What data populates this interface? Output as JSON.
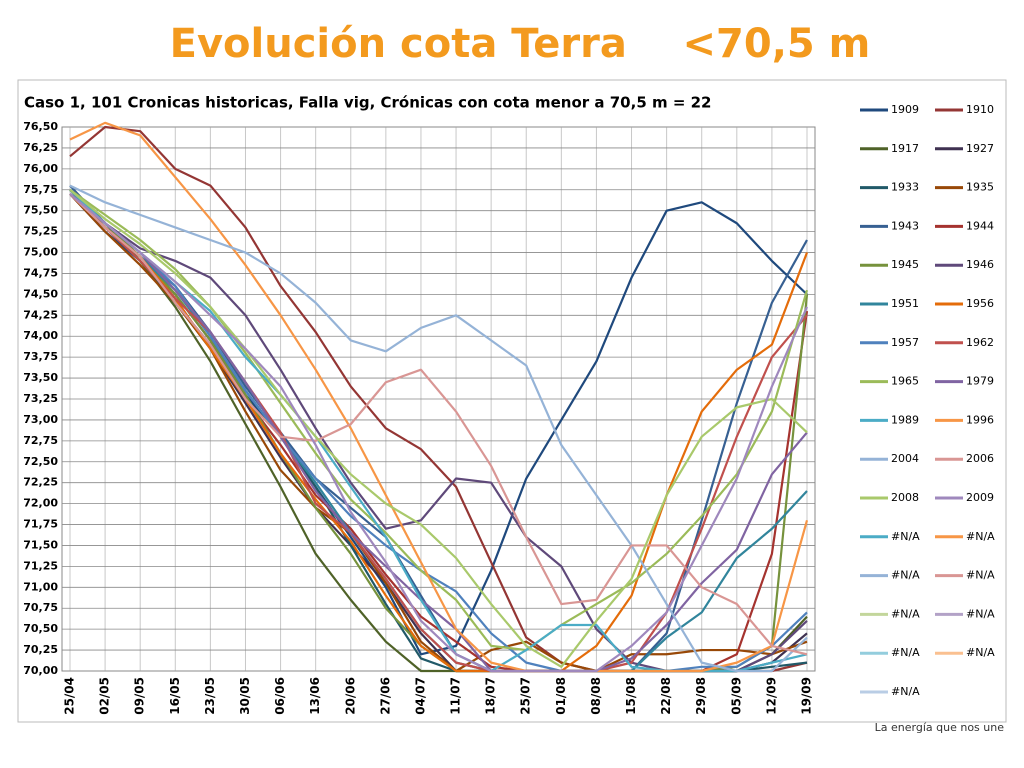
{
  "slide_title": "Evolución cota Terra    <70,5 m",
  "footer": "La energía que nos une",
  "chart_data": {
    "type": "line",
    "title": "Caso  1, 101 Cronicas historicas,  Falla vig,  Crónicas  con cota menor a 70,5 m = 22",
    "categories": [
      "25/04",
      "02/05",
      "09/05",
      "16/05",
      "23/05",
      "30/05",
      "06/06",
      "13/06",
      "20/06",
      "27/06",
      "04/07",
      "11/07",
      "18/07",
      "25/07",
      "01/08",
      "08/08",
      "15/08",
      "22/08",
      "29/08",
      "05/09",
      "12/09",
      "19/09"
    ],
    "ylim": [
      70,
      76.5
    ],
    "yticks": [
      {
        "value": 70,
        "label": "70,00"
      },
      {
        "value": 70.25,
        "label": "70,25"
      },
      {
        "value": 70.5,
        "label": "70,50"
      },
      {
        "value": 70.75,
        "label": "70,75"
      },
      {
        "value": 71,
        "label": "71,00"
      },
      {
        "value": 71.25,
        "label": "71,25"
      },
      {
        "value": 71.5,
        "label": "71,50"
      },
      {
        "value": 71.75,
        "label": "71,75"
      },
      {
        "value": 72,
        "label": "72,00"
      },
      {
        "value": 72.25,
        "label": "72,25"
      },
      {
        "value": 72.5,
        "label": "72,50"
      },
      {
        "value": 72.75,
        "label": "72,75"
      },
      {
        "value": 73,
        "label": "73,00"
      },
      {
        "value": 73.25,
        "label": "73,25"
      },
      {
        "value": 73.5,
        "label": "73,50"
      },
      {
        "value": 73.75,
        "label": "73,75"
      },
      {
        "value": 74,
        "label": "74,00"
      },
      {
        "value": 74.25,
        "label": "74,25"
      },
      {
        "value": 74.5,
        "label": "74,50"
      },
      {
        "value": 74.75,
        "label": "74,75"
      },
      {
        "value": 75,
        "label": "75,00"
      },
      {
        "value": 75.25,
        "label": "75,25"
      },
      {
        "value": 75.5,
        "label": "75,50"
      },
      {
        "value": 75.75,
        "label": "75,75"
      },
      {
        "value": 76,
        "label": "76,00"
      },
      {
        "value": 76.25,
        "label": "76,25"
      },
      {
        "value": 76.5,
        "label": "76,50"
      }
    ],
    "grid": true,
    "legend": "right",
    "series": [
      {
        "name": "1909",
        "color": "#1f497d",
        "values": [
          75.7,
          75.25,
          74.9,
          74.4,
          73.9,
          73.3,
          72.8,
          72.2,
          71.6,
          71.0,
          70.2,
          70.3,
          71.2,
          72.3,
          73.0,
          73.7,
          74.7,
          75.5,
          75.6,
          75.35,
          74.9,
          74.5
        ]
      },
      {
        "name": "1910",
        "color": "#943634",
        "values": [
          76.15,
          76.5,
          76.45,
          76.0,
          75.8,
          75.3,
          74.6,
          74.05,
          73.4,
          72.9,
          72.65,
          72.2,
          71.3,
          70.4,
          70.1,
          70,
          70,
          70,
          70,
          70,
          70,
          70.1
        ]
      },
      {
        "name": "1917",
        "color": "#4f6228",
        "values": [
          75.75,
          75.35,
          74.9,
          74.35,
          73.7,
          72.95,
          72.2,
          71.4,
          70.85,
          70.35,
          70.0,
          70,
          70,
          70,
          70,
          70,
          70,
          70,
          70,
          70,
          70.2,
          70.65
        ]
      },
      {
        "name": "1927",
        "color": "#3f3151",
        "values": [
          75.7,
          75.3,
          74.95,
          74.45,
          73.85,
          73.2,
          72.55,
          71.95,
          71.5,
          71.05,
          70.45,
          70.0,
          70,
          70,
          70,
          70,
          70,
          70,
          70,
          70,
          70.1,
          70.45
        ]
      },
      {
        "name": "1933",
        "color": "#215968",
        "values": [
          75.75,
          75.3,
          74.95,
          74.5,
          73.95,
          73.35,
          72.8,
          72.2,
          71.5,
          70.8,
          70.15,
          70,
          70,
          70,
          70,
          70,
          70,
          70,
          70,
          70,
          70.05,
          70.1
        ]
      },
      {
        "name": "1935",
        "color": "#984807",
        "values": [
          75.7,
          75.25,
          74.85,
          74.4,
          73.85,
          73.1,
          72.4,
          71.95,
          71.65,
          71.05,
          70.35,
          70.0,
          70.25,
          70.35,
          70.1,
          70,
          70.2,
          70.2,
          70.25,
          70.25,
          70.2,
          70.35
        ]
      },
      {
        "name": "1943",
        "color": "#376092",
        "values": [
          75.8,
          75.35,
          74.95,
          74.6,
          74.05,
          73.4,
          72.85,
          72.3,
          71.95,
          71.6,
          70.9,
          70.2,
          70,
          70,
          70,
          70,
          70,
          70.45,
          71.8,
          73.2,
          74.4,
          75.15
        ]
      },
      {
        "name": "1944",
        "color": "#a5332f",
        "values": [
          75.7,
          75.3,
          74.95,
          74.5,
          73.95,
          73.25,
          72.7,
          72.1,
          71.7,
          71.15,
          70.65,
          70.35,
          70.05,
          70,
          70,
          70,
          70,
          70,
          70,
          70.2,
          71.4,
          74.3
        ]
      },
      {
        "name": "1945",
        "color": "#76923c",
        "values": [
          75.7,
          75.35,
          74.95,
          74.5,
          73.95,
          73.3,
          72.6,
          71.95,
          71.4,
          70.75,
          70.3,
          70,
          70,
          70,
          70,
          70,
          70,
          70,
          70,
          70.05,
          70.3,
          74.5
        ]
      },
      {
        "name": "1946",
        "color": "#5f497a",
        "values": [
          75.75,
          75.35,
          75.05,
          74.9,
          74.7,
          74.25,
          73.6,
          72.9,
          72.25,
          71.7,
          71.8,
          72.3,
          72.25,
          71.6,
          71.25,
          70.5,
          70.1,
          70,
          70,
          70,
          70.2,
          70.6
        ]
      },
      {
        "name": "1951",
        "color": "#31859c",
        "values": [
          75.7,
          75.3,
          74.95,
          74.55,
          74.0,
          73.35,
          72.8,
          72.25,
          71.65,
          71.1,
          70.5,
          70.1,
          70,
          70,
          70,
          70,
          70,
          70.4,
          70.7,
          71.35,
          71.7,
          72.15
        ]
      },
      {
        "name": "1956",
        "color": "#e46c0a",
        "values": [
          75.7,
          75.3,
          74.95,
          74.45,
          73.85,
          73.25,
          72.6,
          72.05,
          71.55,
          70.9,
          70.3,
          70,
          70,
          70,
          70,
          70.3,
          70.9,
          72.1,
          73.1,
          73.6,
          73.9,
          75.0
        ]
      },
      {
        "name": "1957",
        "color": "#4f81bd",
        "values": [
          75.75,
          75.35,
          75.0,
          74.6,
          74.0,
          73.35,
          72.8,
          72.3,
          71.85,
          71.5,
          71.2,
          70.95,
          70.45,
          70.1,
          70,
          70,
          70,
          70,
          70.05,
          70.05,
          70.3,
          70.7
        ]
      },
      {
        "name": "1962",
        "color": "#c0504d",
        "values": [
          75.7,
          75.3,
          74.9,
          74.45,
          74.05,
          73.45,
          72.85,
          72.0,
          71.65,
          71.1,
          70.5,
          70.1,
          70,
          70,
          70,
          70,
          70.1,
          70.7,
          71.7,
          72.8,
          73.75,
          74.25
        ]
      },
      {
        "name": "1965",
        "color": "#9bbb59",
        "values": [
          75.75,
          75.45,
          75.15,
          74.8,
          74.35,
          73.8,
          73.2,
          72.6,
          72.05,
          71.65,
          71.2,
          70.85,
          70.3,
          70.25,
          70.55,
          70.8,
          71.05,
          71.4,
          71.85,
          72.35,
          73.1,
          74.55
        ]
      },
      {
        "name": "1979",
        "color": "#8064a2",
        "values": [
          75.7,
          75.35,
          75.0,
          74.55,
          74.05,
          73.45,
          72.8,
          72.15,
          71.65,
          71.25,
          70.85,
          70.5,
          70.0,
          70,
          70,
          70,
          70.15,
          70.55,
          71.05,
          71.45,
          72.35,
          72.85
        ]
      },
      {
        "name": "1989",
        "color": "#4bacc6",
        "values": [
          75.75,
          75.35,
          75.0,
          74.65,
          74.3,
          73.75,
          73.3,
          72.8,
          72.2,
          71.6,
          70.85,
          70.2,
          70,
          70.25,
          70.55,
          70.55,
          70.05,
          70,
          70,
          70,
          70.1,
          70.2
        ]
      },
      {
        "name": "1996",
        "color": "#f79646",
        "values": [
          76.35,
          76.55,
          76.4,
          75.9,
          75.4,
          74.85,
          74.25,
          73.6,
          72.9,
          72.1,
          71.3,
          70.5,
          70.1,
          70,
          70,
          70,
          70,
          70,
          70,
          70.1,
          70.3,
          71.8
        ]
      },
      {
        "name": "2004",
        "color": "#95b3d7",
        "values": [
          75.8,
          75.6,
          75.45,
          75.3,
          75.15,
          75.0,
          74.75,
          74.4,
          73.95,
          73.82,
          74.1,
          74.25,
          73.95,
          73.65,
          72.7,
          72.1,
          71.5,
          70.8,
          70.1,
          70,
          70,
          70.4
        ]
      },
      {
        "name": "2006",
        "color": "#d99694",
        "values": [
          75.7,
          75.3,
          74.95,
          74.4,
          73.9,
          73.25,
          72.8,
          72.75,
          72.95,
          73.45,
          73.6,
          73.1,
          72.45,
          71.6,
          70.8,
          70.85,
          71.5,
          71.5,
          71.0,
          70.8,
          70.3,
          70.2
        ]
      },
      {
        "name": "2008",
        "color": "#a9c96b",
        "values": [
          75.75,
          75.4,
          75.1,
          74.75,
          74.35,
          73.85,
          73.3,
          72.8,
          72.35,
          72.0,
          71.75,
          71.35,
          70.8,
          70.3,
          70.05,
          70.6,
          71.1,
          72.1,
          72.8,
          73.15,
          73.25,
          72.85
        ]
      },
      {
        "name": "2009",
        "color": "#9f88bd",
        "values": [
          75.7,
          75.35,
          75.0,
          74.65,
          74.25,
          73.85,
          73.4,
          72.7,
          71.9,
          71.3,
          70.6,
          70.2,
          70,
          70,
          70,
          70,
          70.3,
          70.7,
          71.5,
          72.3,
          73.4,
          74.35
        ]
      },
      {
        "name": "#N/A",
        "color": "#4bacc6",
        "values": [
          null,
          null,
          null,
          null,
          null,
          null,
          null,
          null,
          null,
          null,
          null,
          null,
          null,
          null,
          null,
          null,
          null,
          null,
          null,
          null,
          null,
          null
        ]
      },
      {
        "name": "#N/A",
        "color": "#f79646",
        "values": [
          null,
          null,
          null,
          null,
          null,
          null,
          null,
          null,
          null,
          null,
          null,
          null,
          null,
          null,
          null,
          null,
          null,
          null,
          null,
          null,
          null,
          null
        ]
      },
      {
        "name": "#N/A",
        "color": "#95b3d7",
        "values": [
          null,
          null,
          null,
          null,
          null,
          null,
          null,
          null,
          null,
          null,
          null,
          null,
          null,
          null,
          null,
          null,
          null,
          null,
          null,
          null,
          null,
          null
        ]
      },
      {
        "name": "#N/A",
        "color": "#d99694",
        "values": [
          null,
          null,
          null,
          null,
          null,
          null,
          null,
          null,
          null,
          null,
          null,
          null,
          null,
          null,
          null,
          null,
          null,
          null,
          null,
          null,
          null,
          null
        ]
      },
      {
        "name": "#N/A",
        "color": "#c3d69b",
        "values": [
          null,
          null,
          null,
          null,
          null,
          null,
          null,
          null,
          null,
          null,
          null,
          null,
          null,
          null,
          null,
          null,
          null,
          null,
          null,
          null,
          null,
          null
        ]
      },
      {
        "name": "#N/A",
        "color": "#b3a2c7",
        "values": [
          null,
          null,
          null,
          null,
          null,
          null,
          null,
          null,
          null,
          null,
          null,
          null,
          null,
          null,
          null,
          null,
          null,
          null,
          null,
          null,
          null,
          null
        ]
      },
      {
        "name": "#N/A",
        "color": "#93cddd",
        "values": [
          null,
          null,
          null,
          null,
          null,
          null,
          null,
          null,
          null,
          null,
          null,
          null,
          null,
          null,
          null,
          null,
          null,
          null,
          null,
          null,
          null,
          null
        ]
      },
      {
        "name": "#N/A",
        "color": "#fac090",
        "values": [
          null,
          null,
          null,
          null,
          null,
          null,
          null,
          null,
          null,
          null,
          null,
          null,
          null,
          null,
          null,
          null,
          null,
          null,
          null,
          null,
          null,
          null
        ]
      },
      {
        "name": "#N/A",
        "color": "#b9cde5",
        "values": [
          null,
          null,
          null,
          null,
          null,
          null,
          null,
          null,
          null,
          null,
          null,
          null,
          null,
          null,
          null,
          null,
          null,
          null,
          null,
          null,
          null,
          null
        ]
      }
    ]
  }
}
